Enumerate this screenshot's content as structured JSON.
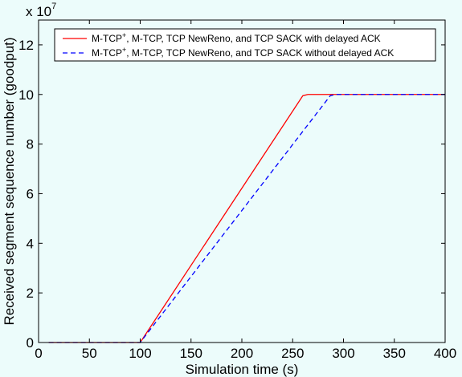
{
  "chart_data": {
    "type": "line",
    "title": "",
    "xlabel": "Simulation time (s)",
    "ylabel": "Received segment sequence number (goodput)",
    "xlim": [
      0,
      400
    ],
    "ylim": [
      0,
      13
    ],
    "y_scale_note": {
      "base": "x 10",
      "exponent": "7"
    },
    "x_ticks": [
      "0",
      "50",
      "100",
      "150",
      "200",
      "250",
      "300",
      "350",
      "400"
    ],
    "y_ticks": [
      "0",
      "2",
      "4",
      "6",
      "8",
      "10",
      "12"
    ],
    "grid": false,
    "legend_position": "top",
    "series": [
      {
        "name_parts": [
          "M-TCP",
          "+",
          ", M-TCP, TCP NewReno, and TCP SACK with delayed ACK"
        ],
        "color": "#ff0000",
        "style": "solid",
        "points": [
          [
            10,
            0
          ],
          [
            100,
            0
          ],
          [
            260,
            9.95
          ],
          [
            265,
            10
          ],
          [
            400,
            10
          ]
        ]
      },
      {
        "name_parts": [
          "M-TCP",
          "+",
          ", M-TCP, TCP NewReno, and TCP SACK without delayed ACK"
        ],
        "color": "#0000ff",
        "style": "dashed",
        "points": [
          [
            10,
            0
          ],
          [
            100,
            0
          ],
          [
            287,
            9.95
          ],
          [
            292,
            10
          ],
          [
            400,
            10
          ]
        ]
      }
    ]
  }
}
